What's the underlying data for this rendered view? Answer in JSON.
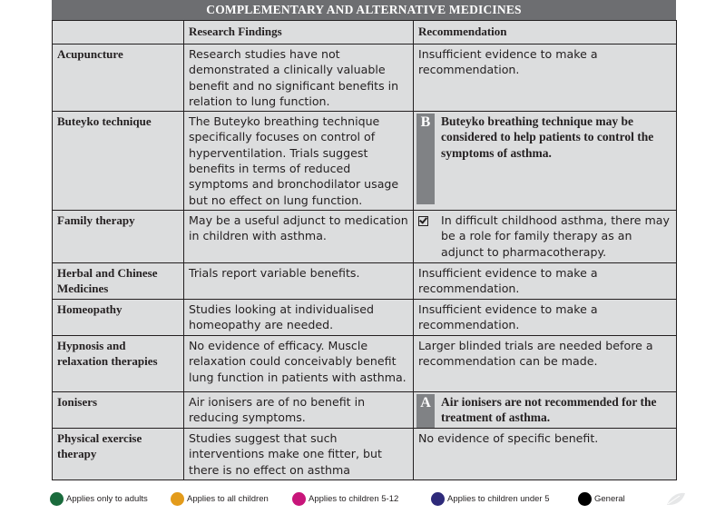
{
  "title": "COMPLEMENTARY AND ALTERNATIVE MEDICINES",
  "headers": {
    "col1": "",
    "col2": "Research Findings",
    "col3": "Recommendation"
  },
  "rows": [
    {
      "name": "Acupuncture",
      "finding": "Research studies have not demonstrated a clinically valuable benefit and no significant benefits in relation to lung function.",
      "rec_type": "plain",
      "grade": "",
      "rec": "Insufficient evidence to make a recommendation."
    },
    {
      "name": "Buteyko technique",
      "finding": "The Buteyko breathing technique specifically focuses on control of hyperventilation. Trials suggest benefits in terms of reduced symptoms and bronchodilator usage but no effect on lung function.",
      "rec_type": "graded",
      "grade": "B",
      "rec": "Buteyko breathing technique may be considered to help patients to control the symptoms of asthma."
    },
    {
      "name": "Family therapy",
      "finding": "May be a useful adjunct to medication in children with asthma.",
      "rec_type": "check",
      "grade": "",
      "rec": "In difficult childhood asthma, there may be a role for family therapy as an adjunct to pharmacotherapy."
    },
    {
      "name": "Herbal and Chinese Medicines",
      "finding": "Trials report variable benefits.",
      "rec_type": "plain",
      "grade": "",
      "rec": "Insufficient evidence to make a recommendation."
    },
    {
      "name": "Homeopathy",
      "finding": "Studies looking at individualised homeopathy are needed.",
      "rec_type": "plain",
      "grade": "",
      "rec": "Insufficient evidence to make a recommendation."
    },
    {
      "name": "Hypnosis and relaxation therapies",
      "finding": "No evidence of efficacy. Muscle relaxation could conceivably benefit lung function in patients with asthma.",
      "rec_type": "plain",
      "grade": "",
      "rec": "Larger blinded trials are needed before a recommendation can be made."
    },
    {
      "name": "Ionisers",
      "finding": "Air ionisers are of no benefit in reducing symptoms.",
      "rec_type": "graded",
      "grade": "A",
      "rec": "Air ionisers are not recommended for the treatment of asthma."
    },
    {
      "name": "Physical exercise therapy",
      "finding": "Studies suggest that such interventions make one fitter, but there is no effect on asthma",
      "rec_type": "plain",
      "grade": "",
      "rec": "No evidence of specific benefit."
    }
  ],
  "legend": [
    {
      "label": "Applies only to adults",
      "color": "#1a6b3c"
    },
    {
      "label": "Applies to all children",
      "color": "#e39b1b"
    },
    {
      "label": "Applies to children 5-12",
      "color": "#c8157a"
    },
    {
      "label": "Applies to children under 5",
      "color": "#2e2a7a"
    },
    {
      "label": "General",
      "color": "#000000"
    }
  ]
}
